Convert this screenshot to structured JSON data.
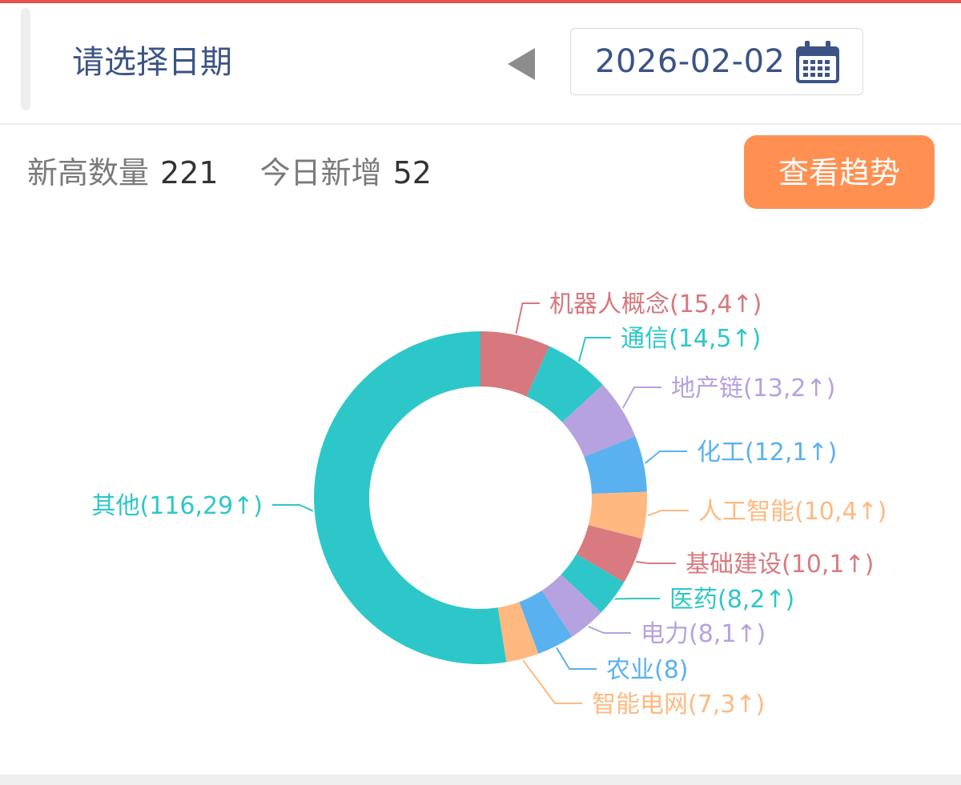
{
  "header": {
    "title": "请选择日期",
    "date": "2026-02-02"
  },
  "stats": {
    "new_high_label": "新高数量",
    "new_high_value": "221",
    "today_new_label": "今日新增",
    "today_new_value": "52"
  },
  "trend_button": "查看趋势",
  "chart_data": {
    "type": "pie",
    "variant": "donut",
    "title": "",
    "slices": [
      {
        "name": "机器人概念",
        "value": 15,
        "increase": 4,
        "label": "机器人概念(15,4↑)",
        "color": "#d6787d"
      },
      {
        "name": "通信",
        "value": 14,
        "increase": 5,
        "label": "通信(14,5↑)",
        "color": "#2ec7c9"
      },
      {
        "name": "地产链",
        "value": 13,
        "increase": 2,
        "label": "地产链(13,2↑)",
        "color": "#b6a2de"
      },
      {
        "name": "化工",
        "value": 12,
        "increase": 1,
        "label": "化工(12,1↑)",
        "color": "#5ab1ef"
      },
      {
        "name": "人工智能",
        "value": 10,
        "increase": 4,
        "label": "人工智能(10,4↑)",
        "color": "#ffb980"
      },
      {
        "name": "基础建设",
        "value": 10,
        "increase": 1,
        "label": "基础建设(10,1↑)",
        "color": "#d87a80"
      },
      {
        "name": "医药",
        "value": 8,
        "increase": 2,
        "label": "医药(8,2↑)",
        "color": "#2ec7c9"
      },
      {
        "name": "电力",
        "value": 8,
        "increase": 1,
        "label": "电力(8,1↑)",
        "color": "#b6a2de"
      },
      {
        "name": "农业",
        "value": 8,
        "increase": null,
        "label": "农业(8)",
        "color": "#5ab1ef"
      },
      {
        "name": "智能电网",
        "value": 7,
        "increase": 3,
        "label": "智能电网(7,3↑)",
        "color": "#ffb980"
      },
      {
        "name": "其他",
        "value": 116,
        "increase": 29,
        "label": "其他(116,29↑)",
        "color": "#2ec7c9"
      }
    ],
    "legend": "none"
  }
}
